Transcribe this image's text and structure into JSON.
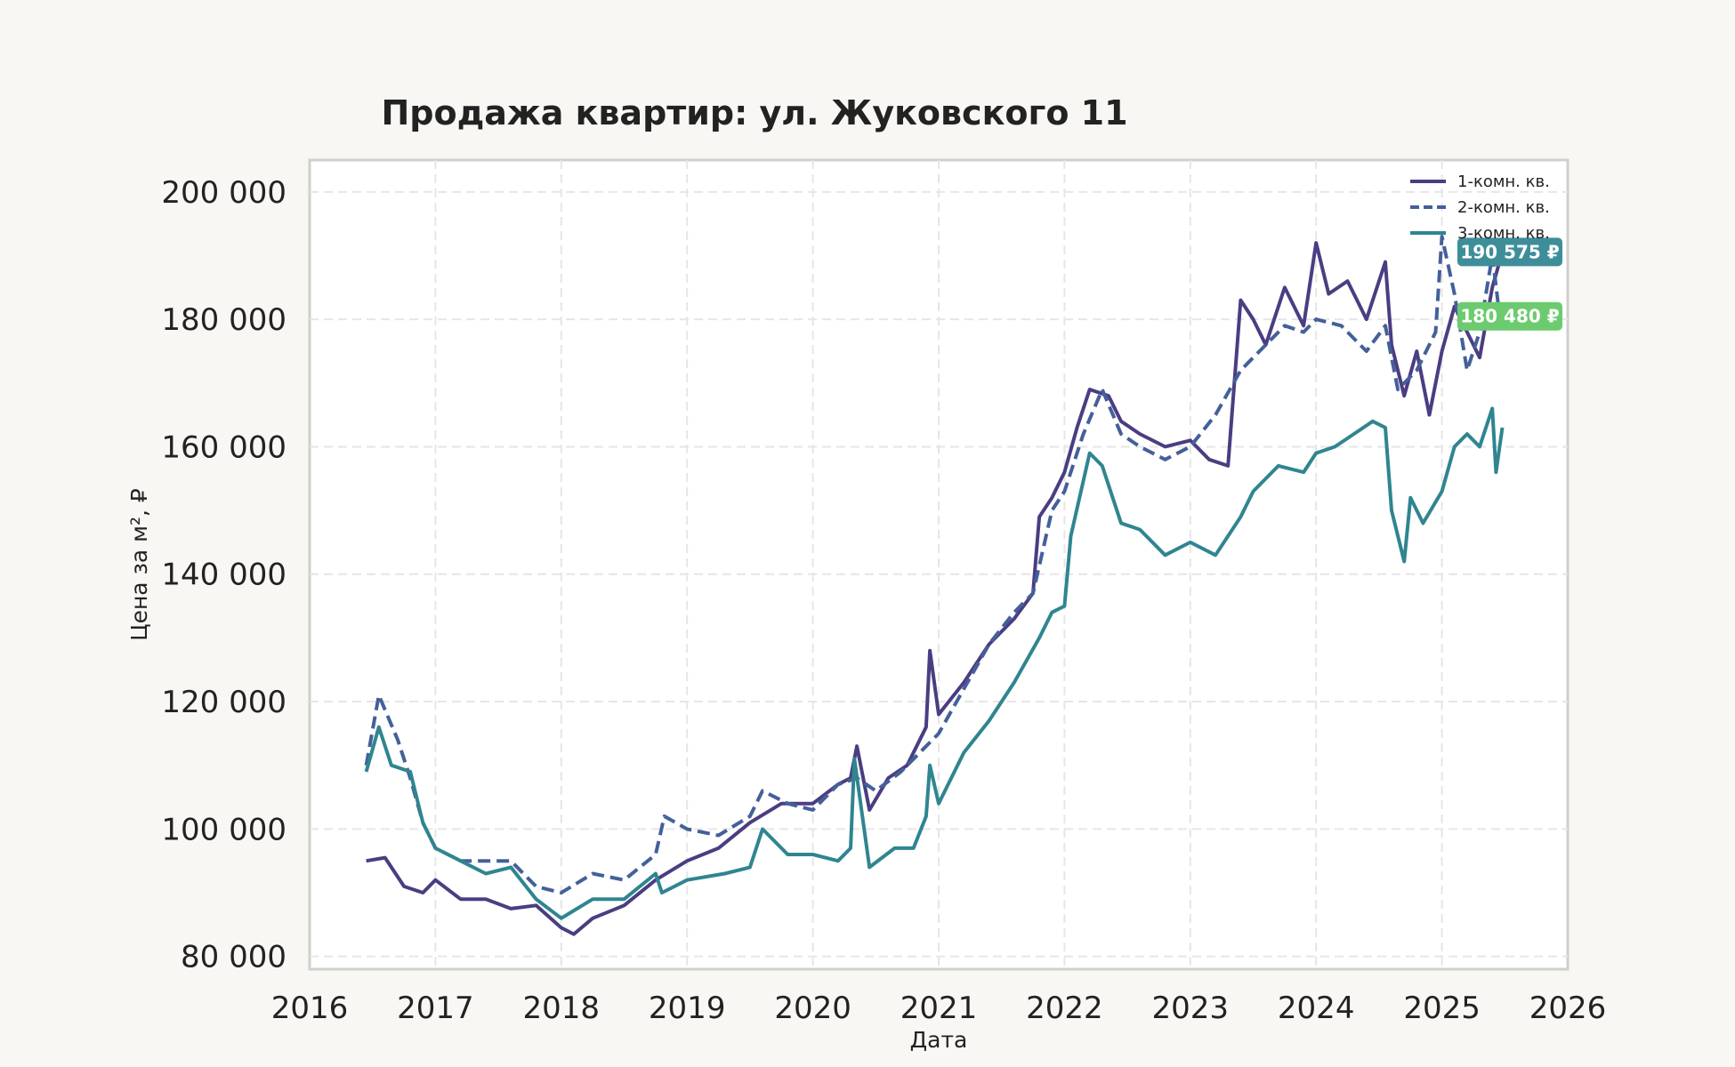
{
  "chart_data": {
    "type": "line",
    "title": "Продажа квартир: ул. Жуковского 11",
    "xlabel": "Дата",
    "ylabel": "Цена за м², ₽",
    "xlim": [
      2016,
      2026
    ],
    "ylim": [
      78000,
      205000
    ],
    "x_ticks": [
      {
        "value": 2016,
        "label": "2016"
      },
      {
        "value": 2017,
        "label": "2017"
      },
      {
        "value": 2018,
        "label": "2018"
      },
      {
        "value": 2019,
        "label": "2019"
      },
      {
        "value": 2020,
        "label": "2020"
      },
      {
        "value": 2021,
        "label": "2021"
      },
      {
        "value": 2022,
        "label": "2022"
      },
      {
        "value": 2023,
        "label": "2023"
      },
      {
        "value": 2024,
        "label": "2024"
      },
      {
        "value": 2025,
        "label": "2025"
      },
      {
        "value": 2026,
        "label": "2026"
      }
    ],
    "y_ticks": [
      {
        "value": 80000,
        "label": "80 000"
      },
      {
        "value": 100000,
        "label": "100 000"
      },
      {
        "value": 120000,
        "label": "120 000"
      },
      {
        "value": 140000,
        "label": "140 000"
      },
      {
        "value": 160000,
        "label": "160 000"
      },
      {
        "value": 180000,
        "label": "180 000"
      },
      {
        "value": 200000,
        "label": "200 000"
      }
    ],
    "grid": true,
    "legend_position": "top-right",
    "series": [
      {
        "name": "1-комн. кв.",
        "color": "#4b3d82",
        "dash": "solid",
        "x": [
          2016.45,
          2016.6,
          2016.75,
          2016.9,
          2017.0,
          2017.2,
          2017.4,
          2017.6,
          2017.8,
          2018.0,
          2018.1,
          2018.25,
          2018.5,
          2018.75,
          2019.0,
          2019.25,
          2019.5,
          2019.75,
          2020.0,
          2020.2,
          2020.3,
          2020.35,
          2020.45,
          2020.6,
          2020.75,
          2020.9,
          2020.93,
          2021.0,
          2021.2,
          2021.4,
          2021.6,
          2021.75,
          2021.8,
          2021.9,
          2022.0,
          2022.1,
          2022.2,
          2022.35,
          2022.45,
          2022.6,
          2022.8,
          2023.0,
          2023.15,
          2023.3,
          2023.4,
          2023.5,
          2023.6,
          2023.75,
          2023.9,
          2024.0,
          2024.1,
          2024.25,
          2024.4,
          2024.55,
          2024.6,
          2024.7,
          2024.8,
          2024.9,
          2025.0,
          2025.1,
          2025.2,
          2025.3,
          2025.4,
          2025.48
        ],
        "values": [
          95000,
          95500,
          91000,
          90000,
          92000,
          89000,
          89000,
          87500,
          88000,
          84500,
          83500,
          86000,
          88000,
          92000,
          95000,
          97000,
          101000,
          104000,
          104000,
          107000,
          108000,
          113000,
          103000,
          108000,
          110000,
          116000,
          128000,
          118000,
          123000,
          129000,
          133000,
          137000,
          149000,
          152000,
          156000,
          163000,
          169000,
          168000,
          164000,
          162000,
          160000,
          161000,
          158000,
          157000,
          183000,
          180000,
          176000,
          185000,
          179000,
          192000,
          184000,
          186000,
          180000,
          189000,
          176000,
          168000,
          175000,
          165000,
          175000,
          182000,
          178000,
          174000,
          185000,
          190575
        ]
      },
      {
        "name": "2-комн. кв.",
        "color": "#44609a",
        "dash": "dashed",
        "x": [
          2016.45,
          2016.55,
          2016.7,
          2016.8,
          2016.9,
          2017.0,
          2017.2,
          2017.4,
          2017.6,
          2017.8,
          2018.0,
          2018.25,
          2018.5,
          2018.75,
          2018.82,
          2019.0,
          2019.25,
          2019.5,
          2019.6,
          2019.8,
          2020.0,
          2020.2,
          2020.35,
          2020.5,
          2020.7,
          2020.9,
          2021.0,
          2021.2,
          2021.4,
          2021.6,
          2021.75,
          2021.9,
          2022.0,
          2022.15,
          2022.3,
          2022.45,
          2022.6,
          2022.8,
          2023.0,
          2023.2,
          2023.4,
          2023.55,
          2023.75,
          2023.9,
          2024.0,
          2024.2,
          2024.4,
          2024.55,
          2024.65,
          2024.8,
          2024.95,
          2025.0,
          2025.1,
          2025.2,
          2025.3,
          2025.4,
          2025.45,
          2025.48
        ],
        "values": [
          110000,
          121000,
          114000,
          108000,
          101000,
          97000,
          95000,
          95000,
          95000,
          91000,
          90000,
          93000,
          92000,
          96000,
          102000,
          100000,
          99000,
          102000,
          106000,
          104000,
          103000,
          107000,
          108000,
          106000,
          109000,
          113000,
          115000,
          122000,
          129000,
          134000,
          137000,
          150000,
          153000,
          162000,
          169000,
          162000,
          160000,
          158000,
          160000,
          165000,
          172000,
          175000,
          179000,
          178000,
          180000,
          179000,
          175000,
          179000,
          169000,
          172000,
          178000,
          193000,
          184000,
          172000,
          178000,
          190000,
          182000,
          180480
        ]
      },
      {
        "name": "3-комн. кв.",
        "color": "#2f8590",
        "dash": "solid",
        "x": [
          2016.45,
          2016.55,
          2016.65,
          2016.8,
          2016.9,
          2017.0,
          2017.2,
          2017.4,
          2017.6,
          2017.8,
          2018.0,
          2018.25,
          2018.5,
          2018.75,
          2018.8,
          2019.0,
          2019.3,
          2019.5,
          2019.6,
          2019.8,
          2020.0,
          2020.2,
          2020.3,
          2020.33,
          2020.45,
          2020.65,
          2020.8,
          2020.9,
          2020.93,
          2021.0,
          2021.2,
          2021.4,
          2021.6,
          2021.8,
          2021.9,
          2022.0,
          2022.05,
          2022.2,
          2022.3,
          2022.45,
          2022.6,
          2022.8,
          2023.0,
          2023.2,
          2023.4,
          2023.5,
          2023.7,
          2023.9,
          2024.0,
          2024.15,
          2024.3,
          2024.45,
          2024.55,
          2024.6,
          2024.7,
          2024.75,
          2024.85,
          2025.0,
          2025.1,
          2025.2,
          2025.3,
          2025.4,
          2025.43,
          2025.48
        ],
        "values": [
          109000,
          116000,
          110000,
          109000,
          101000,
          97000,
          95000,
          93000,
          94000,
          89000,
          86000,
          89000,
          89000,
          93000,
          90000,
          92000,
          93000,
          94000,
          100000,
          96000,
          96000,
          95000,
          97000,
          111000,
          94000,
          97000,
          97000,
          102000,
          110000,
          104000,
          112000,
          117000,
          123000,
          130000,
          134000,
          135000,
          146000,
          159000,
          157000,
          148000,
          147000,
          143000,
          145000,
          143000,
          149000,
          153000,
          157000,
          156000,
          159000,
          160000,
          162000,
          164000,
          163000,
          150000,
          142000,
          152000,
          148000,
          153000,
          160000,
          162000,
          160000,
          166000,
          156000,
          163000
        ]
      }
    ],
    "badges": [
      {
        "text": "190 575 ₽",
        "value": 190575,
        "color": "#3e8e9a"
      },
      {
        "text": "180 480 ₽",
        "value": 180480,
        "color": "#6ccb6e"
      }
    ]
  }
}
